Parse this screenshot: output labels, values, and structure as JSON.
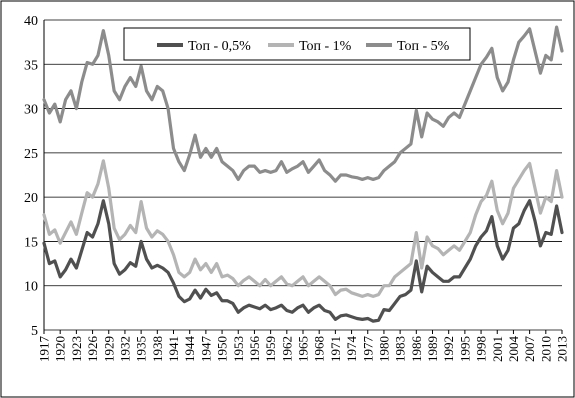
{
  "chart_data": {
    "type": "line",
    "title": "",
    "xlabel": "",
    "ylabel": "",
    "ylim": [
      5,
      40
    ],
    "xlim": [
      1917,
      2013
    ],
    "yticks": [
      5,
      10,
      15,
      20,
      25,
      30,
      35,
      40
    ],
    "xticks": [
      1917,
      1920,
      1923,
      1926,
      1929,
      1932,
      1935,
      1938,
      1941,
      1944,
      1947,
      1950,
      1953,
      1956,
      1959,
      1962,
      1965,
      1968,
      1971,
      1974,
      1977,
      1980,
      1983,
      1986,
      1989,
      1992,
      1995,
      1998,
      2001,
      2004,
      2007,
      2010,
      2013
    ],
    "grid": "horizontal",
    "legend_position": "top-center",
    "series": [
      {
        "name": "Топ - 0,5%",
        "color": "#505050",
        "x": [
          1917,
          1918,
          1919,
          1920,
          1921,
          1922,
          1923,
          1924,
          1925,
          1926,
          1927,
          1928,
          1929,
          1930,
          1931,
          1932,
          1933,
          1934,
          1935,
          1936,
          1937,
          1938,
          1939,
          1940,
          1941,
          1942,
          1943,
          1944,
          1945,
          1946,
          1947,
          1948,
          1949,
          1950,
          1951,
          1952,
          1953,
          1954,
          1955,
          1956,
          1957,
          1958,
          1959,
          1960,
          1961,
          1962,
          1963,
          1964,
          1965,
          1966,
          1967,
          1968,
          1969,
          1970,
          1971,
          1972,
          1973,
          1974,
          1975,
          1976,
          1977,
          1978,
          1979,
          1980,
          1981,
          1982,
          1983,
          1984,
          1985,
          1986,
          1987,
          1988,
          1989,
          1990,
          1991,
          1992,
          1993,
          1994,
          1995,
          1996,
          1997,
          1998,
          1999,
          2000,
          2001,
          2002,
          2003,
          2004,
          2005,
          2006,
          2007,
          2008,
          2009,
          2010,
          2011,
          2012,
          2013
        ],
        "values": [
          14.8,
          12.5,
          12.8,
          11.0,
          11.8,
          13.0,
          12.0,
          14.0,
          16.0,
          15.5,
          17.0,
          19.6,
          17.0,
          12.5,
          11.3,
          11.8,
          12.6,
          12.2,
          15.0,
          13.0,
          12.0,
          12.3,
          12.0,
          11.5,
          10.3,
          8.8,
          8.2,
          8.5,
          9.5,
          8.6,
          9.6,
          8.9,
          9.2,
          8.3,
          8.3,
          8.0,
          7.0,
          7.5,
          7.8,
          7.6,
          7.4,
          7.8,
          7.3,
          7.5,
          7.8,
          7.2,
          7.0,
          7.5,
          7.8,
          7.0,
          7.5,
          7.8,
          7.2,
          7.0,
          6.2,
          6.6,
          6.7,
          6.5,
          6.3,
          6.2,
          6.3,
          6.0,
          6.1,
          7.3,
          7.2,
          8.0,
          8.8,
          9.0,
          9.5,
          12.8,
          9.3,
          12.2,
          11.5,
          11.0,
          10.5,
          10.5,
          11.0,
          11.0,
          12.0,
          13.0,
          14.5,
          15.5,
          16.2,
          17.8,
          14.5,
          13.0,
          14.0,
          16.5,
          17.0,
          18.5,
          19.6,
          17.3,
          14.5,
          16.0,
          15.8,
          19.0,
          16.0
        ]
      },
      {
        "name": "Топ - 1%",
        "color": "#b4b4b4",
        "x": [
          1917,
          1918,
          1919,
          1920,
          1921,
          1922,
          1923,
          1924,
          1925,
          1926,
          1927,
          1928,
          1929,
          1930,
          1931,
          1932,
          1933,
          1934,
          1935,
          1936,
          1937,
          1938,
          1939,
          1940,
          1941,
          1942,
          1943,
          1944,
          1945,
          1946,
          1947,
          1948,
          1949,
          1950,
          1951,
          1952,
          1953,
          1954,
          1955,
          1956,
          1957,
          1958,
          1959,
          1960,
          1961,
          1962,
          1963,
          1964,
          1965,
          1966,
          1967,
          1968,
          1969,
          1970,
          1971,
          1972,
          1973,
          1974,
          1975,
          1976,
          1977,
          1978,
          1979,
          1980,
          1981,
          1982,
          1983,
          1984,
          1985,
          1986,
          1987,
          1988,
          1989,
          1990,
          1991,
          1992,
          1993,
          1994,
          1995,
          1996,
          1997,
          1998,
          1999,
          2000,
          2001,
          2002,
          2003,
          2004,
          2005,
          2006,
          2007,
          2008,
          2009,
          2010,
          2011,
          2012,
          2013
        ],
        "values": [
          18.0,
          15.8,
          16.3,
          14.8,
          16.0,
          17.2,
          15.8,
          18.2,
          20.5,
          20.0,
          21.5,
          24.1,
          21.0,
          16.5,
          15.2,
          15.8,
          16.8,
          16.0,
          19.5,
          16.5,
          15.5,
          16.2,
          15.8,
          15.0,
          13.5,
          11.5,
          11.0,
          11.5,
          13.0,
          11.8,
          12.5,
          11.5,
          12.5,
          11.0,
          11.2,
          10.8,
          10.0,
          10.6,
          11.0,
          10.5,
          10.0,
          10.7,
          10.0,
          10.5,
          11.0,
          10.2,
          10.0,
          10.5,
          11.0,
          10.0,
          10.5,
          11.0,
          10.5,
          10.0,
          9.0,
          9.5,
          9.6,
          9.2,
          9.0,
          8.8,
          9.0,
          8.8,
          9.0,
          10.0,
          10.0,
          11.0,
          11.5,
          12.0,
          12.5,
          16.0,
          12.0,
          15.5,
          14.5,
          14.2,
          13.5,
          14.0,
          14.5,
          14.0,
          15.0,
          16.0,
          18.0,
          19.5,
          20.2,
          21.8,
          18.5,
          17.0,
          18.2,
          21.0,
          22.0,
          23.0,
          23.8,
          21.0,
          18.2,
          20.0,
          19.5,
          23.0,
          20.0
        ]
      },
      {
        "name": "Топ - 5%",
        "color": "#8c8c8c",
        "x": [
          1917,
          1918,
          1919,
          1920,
          1921,
          1922,
          1923,
          1924,
          1925,
          1926,
          1927,
          1928,
          1929,
          1930,
          1931,
          1932,
          1933,
          1934,
          1935,
          1936,
          1937,
          1938,
          1939,
          1940,
          1941,
          1942,
          1943,
          1944,
          1945,
          1946,
          1947,
          1948,
          1949,
          1950,
          1951,
          1952,
          1953,
          1954,
          1955,
          1956,
          1957,
          1958,
          1959,
          1960,
          1961,
          1962,
          1963,
          1964,
          1965,
          1966,
          1967,
          1968,
          1969,
          1970,
          1971,
          1972,
          1973,
          1974,
          1975,
          1976,
          1977,
          1978,
          1979,
          1980,
          1981,
          1982,
          1983,
          1984,
          1985,
          1986,
          1987,
          1988,
          1989,
          1990,
          1991,
          1992,
          1993,
          1994,
          1995,
          1996,
          1997,
          1998,
          1999,
          2000,
          2001,
          2002,
          2003,
          2004,
          2005,
          2006,
          2007,
          2008,
          2009,
          2010,
          2011,
          2012,
          2013
        ],
        "values": [
          31.0,
          29.5,
          30.5,
          28.5,
          31.0,
          32.0,
          30.0,
          33.0,
          35.2,
          35.0,
          36.0,
          38.8,
          36.0,
          32.0,
          31.0,
          32.5,
          33.5,
          32.5,
          34.8,
          32.0,
          31.0,
          32.5,
          32.0,
          30.0,
          25.5,
          24.0,
          23.0,
          24.8,
          27.0,
          24.5,
          25.5,
          24.5,
          25.5,
          24.0,
          23.5,
          23.0,
          22.0,
          23.0,
          23.5,
          23.5,
          22.8,
          23.0,
          22.8,
          23.0,
          24.0,
          22.8,
          23.2,
          23.5,
          24.0,
          22.8,
          23.5,
          24.2,
          23.0,
          22.5,
          21.8,
          22.5,
          22.5,
          22.3,
          22.2,
          22.0,
          22.2,
          22.0,
          22.2,
          23.0,
          23.5,
          24.0,
          25.0,
          25.5,
          26.0,
          29.8,
          26.8,
          29.5,
          28.8,
          28.5,
          28.0,
          29.0,
          29.5,
          29.0,
          30.5,
          32.0,
          33.5,
          35.0,
          35.8,
          36.8,
          33.5,
          32.0,
          33.0,
          35.5,
          37.5,
          38.2,
          39.0,
          36.5,
          34.0,
          36.0,
          35.5,
          39.2,
          36.5
        ]
      }
    ]
  }
}
